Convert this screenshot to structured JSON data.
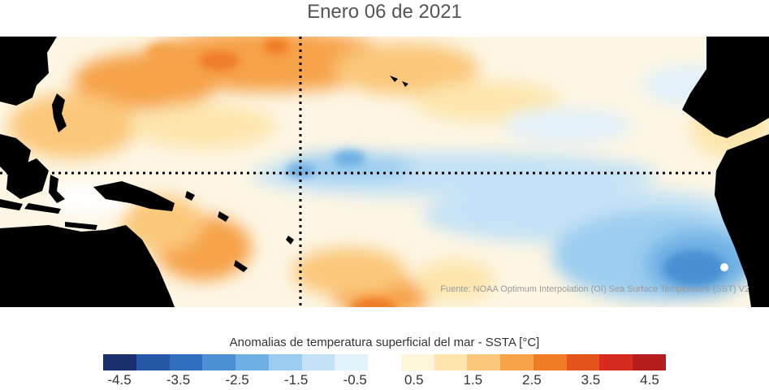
{
  "title": "Enero 06 de 2021",
  "source": "Fuente: NOAA Optimum Interpolation (OI) Sea Surface Temperature (SST) V2",
  "colorbar": {
    "label": "Anomalias de temperatura superficial del mar - SSTA  [°C]",
    "min": -4.5,
    "max": 4.5,
    "colors": [
      "#1c2f6e",
      "#2557a6",
      "#2f6fbe",
      "#4a90d3",
      "#6eb0e4",
      "#9bcdf0",
      "#c4e2f6",
      "#e3f1fa",
      "#ffffff",
      "#fff6dc",
      "#fde6ad",
      "#fbc77a",
      "#f6a248",
      "#f07d26",
      "#e5531d",
      "#d52c1f",
      "#b51e1d"
    ],
    "ticks": [
      "-4.5",
      "-3.5",
      "-2.5",
      "-1.5",
      "-0.5",
      "0.5",
      "1.5",
      "2.5",
      "3.5",
      "4.5"
    ]
  },
  "map": {
    "ocean_base_color": "#fdf6e4",
    "land_color": "#000000",
    "reference_lines": [
      "equator",
      "180-meridian"
    ],
    "reference_line_style": "dotted"
  }
}
